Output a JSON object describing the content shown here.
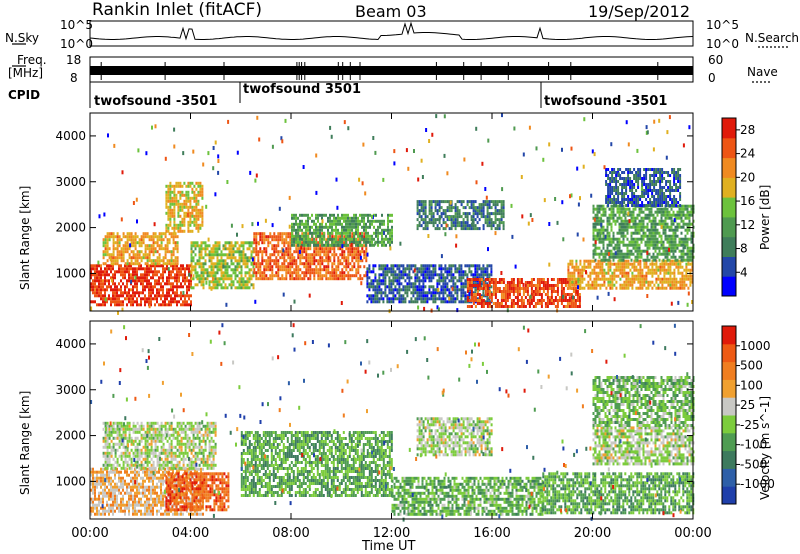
{
  "header": {
    "title": "Rankin Inlet (fitACF)",
    "beam": "Beam 03",
    "date": "19/Sep/2012"
  },
  "top_panels": {
    "nsky": {
      "label": "N.Sky",
      "ticks": [
        "10^5",
        "10^0"
      ]
    },
    "nsearch": {
      "label": "N.Search",
      "ticks": [
        "10^5",
        "10^0"
      ]
    },
    "freq": {
      "label_line1": "Freq.",
      "label_line2": "[MHz]",
      "ticks": [
        "18",
        "8"
      ]
    },
    "nave": {
      "label": "Nave",
      "ticks": [
        "60",
        "0"
      ]
    },
    "cpid": {
      "label": "CPID",
      "segments": [
        "twofsound -3501",
        "twofsound 3501",
        "twofsound -3501"
      ]
    }
  },
  "colors": {
    "power_scale": [
      "#0000ff",
      "#2347a8",
      "#3f7d5a",
      "#4f9a50",
      "#6cc23c",
      "#e0b020",
      "#f08a20",
      "#ee5514",
      "#e01a0a"
    ],
    "velocity_scale": [
      "#1f3faa",
      "#2e5fa8",
      "#3d7a5e",
      "#4f9c52",
      "#7ccc3c",
      "#c8c8c4",
      "#f0a030",
      "#f07e20",
      "#ee5a14",
      "#e01a0a"
    ]
  },
  "chart_data": [
    {
      "type": "heatmap",
      "name_panel": "power",
      "xlabel": "Time UT",
      "ylabel": "Slant Range [km]",
      "x_ticks": [
        "00:00",
        "04:00",
        "08:00",
        "12:00",
        "16:00",
        "20:00",
        "00:00"
      ],
      "y_ticks": [
        1000,
        2000,
        3000,
        4000
      ],
      "xlim": [
        0,
        24
      ],
      "ylim": [
        180,
        4500
      ],
      "colorbar_label": "Power [dB]",
      "colorbar_ticks": [
        "4",
        "8",
        "12",
        "16",
        "20",
        "24",
        "28"
      ],
      "colorbar_range": [
        0,
        30
      ],
      "regions": [
        {
          "t": [
            0.0,
            4.0
          ],
          "r": [
            300,
            1200
          ],
          "v": 27
        },
        {
          "t": [
            0.5,
            3.5
          ],
          "r": [
            1200,
            1900
          ],
          "v": 20
        },
        {
          "t": [
            3.0,
            4.5
          ],
          "r": [
            1900,
            3000
          ],
          "v": 18
        },
        {
          "t": [
            4.0,
            6.5
          ],
          "r": [
            700,
            1700
          ],
          "v": 16
        },
        {
          "t": [
            6.5,
            11.0
          ],
          "r": [
            900,
            1900
          ],
          "v": 24
        },
        {
          "t": [
            8.0,
            12.0
          ],
          "r": [
            1600,
            2300
          ],
          "v": 12
        },
        {
          "t": [
            11.0,
            16.0
          ],
          "r": [
            400,
            1200
          ],
          "v": 6
        },
        {
          "t": [
            13.0,
            16.5
          ],
          "r": [
            2000,
            2600
          ],
          "v": 8
        },
        {
          "t": [
            15.0,
            19.5
          ],
          "r": [
            250,
            900
          ],
          "v": 26
        },
        {
          "t": [
            19.0,
            24.0
          ],
          "r": [
            700,
            1300
          ],
          "v": 20
        },
        {
          "t": [
            20.0,
            24.0
          ],
          "r": [
            1300,
            2500
          ],
          "v": 12
        },
        {
          "t": [
            20.5,
            23.5
          ],
          "r": [
            2500,
            3300
          ],
          "v": 6
        }
      ]
    },
    {
      "type": "heatmap",
      "name_panel": "velocity",
      "xlabel": "Time UT",
      "ylabel": "Slant Range [km]",
      "x_ticks": [
        "00:00",
        "04:00",
        "08:00",
        "12:00",
        "16:00",
        "20:00",
        "00:00"
      ],
      "y_ticks": [
        1000,
        2000,
        3000,
        4000
      ],
      "xlim": [
        0,
        24
      ],
      "ylim": [
        180,
        4500
      ],
      "colorbar_label": "Velocity [m s^-1]",
      "colorbar_ticks": [
        "1000",
        "500",
        "100",
        "25",
        "-25",
        "-100",
        "-500",
        "-1000"
      ],
      "colorbar_range": [
        -1200,
        1200
      ],
      "regions": [
        {
          "t": [
            0.0,
            4.5
          ],
          "r": [
            300,
            1300
          ],
          "v": 300
        },
        {
          "t": [
            0.5,
            5.0
          ],
          "r": [
            1300,
            2300
          ],
          "v": 0
        },
        {
          "t": [
            3.0,
            5.5
          ],
          "r": [
            400,
            1200
          ],
          "v": 800
        },
        {
          "t": [
            6.0,
            12.0
          ],
          "r": [
            700,
            2100
          ],
          "v": -300
        },
        {
          "t": [
            12.0,
            18.0
          ],
          "r": [
            300,
            1100
          ],
          "v": -250
        },
        {
          "t": [
            13.0,
            16.0
          ],
          "r": [
            1600,
            2400
          ],
          "v": 0
        },
        {
          "t": [
            18.0,
            24.0
          ],
          "r": [
            300,
            1200
          ],
          "v": -300
        },
        {
          "t": [
            20.0,
            24.0
          ],
          "r": [
            1400,
            2200
          ],
          "v": 0
        },
        {
          "t": [
            20.0,
            24.0
          ],
          "r": [
            2200,
            3300
          ],
          "v": -200
        }
      ]
    }
  ]
}
